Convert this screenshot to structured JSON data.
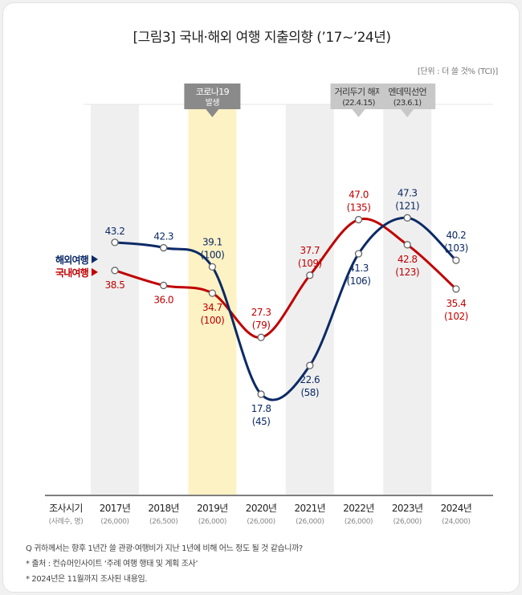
{
  "title": "[그림3] 국내·해외 여행 지출의향 (’17~’24년)",
  "unit": "[단위 : 더 쓸 것% (TCI)]",
  "footnotes": [
    "Q 귀하께서는 향후 1년간 쓸 관광·여행비가 지난 1년에 비해 어느 정도 될 것 같습니까?",
    "* 출처 : 컨슈머인사이트 ‘주례 여행 행태 및 계획 조사’",
    "* 2024년은 11월까지 조사된 내용임."
  ],
  "colors": {
    "overseas": "#0c2a66",
    "domestic": "#c00000",
    "highlight": "#fdf2c4",
    "band": "#efefef",
    "callout": "#8a8a8a",
    "callout_light": "#c8c8c8"
  },
  "chart_data": {
    "type": "line",
    "categories": [
      "2017년",
      "2018년",
      "2019년",
      "2020년",
      "2021년",
      "2022년",
      "2023년",
      "2024년"
    ],
    "samples": [
      "(26,000)",
      "(26,500)",
      "(26,000)",
      "(26,000)",
      "(26,000)",
      "(26,000)",
      "(26,000)",
      "(24,000)"
    ],
    "axis_label": "조사시기",
    "axis_sublabel": "(사례수, 명)",
    "highlighted_category": "2019년",
    "series": [
      {
        "name": "해외여행",
        "values": [
          43.2,
          42.3,
          39.1,
          17.8,
          22.6,
          41.3,
          47.3,
          40.2
        ],
        "tci": [
          "",
          "",
          "(100)",
          "(45)",
          "(58)",
          "(106)",
          "(121)",
          "(103)"
        ]
      },
      {
        "name": "국내여행",
        "values": [
          38.5,
          36.0,
          34.7,
          27.3,
          37.7,
          47.0,
          42.8,
          35.4
        ],
        "tci": [
          "",
          "",
          "(100)",
          "(79)",
          "(109)",
          "(135)",
          "(123)",
          "(102)"
        ]
      }
    ],
    "annotations": [
      {
        "category": "2019년",
        "lines": [
          "코로나19",
          "발생"
        ]
      },
      {
        "category": "2022년",
        "lines": [
          "거리두기 해제",
          "(22.4.15)"
        ]
      },
      {
        "category": "2023년",
        "lines": [
          "엔데믹선언",
          "(23.6.1)"
        ]
      }
    ]
  }
}
